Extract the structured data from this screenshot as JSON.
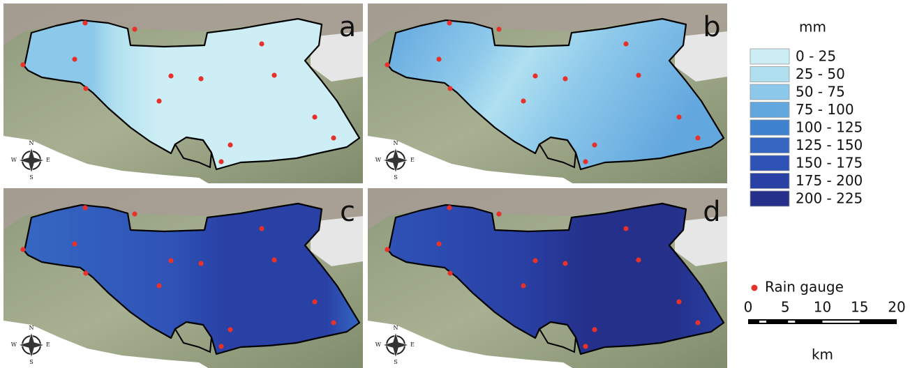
{
  "panels": [
    {
      "label": "a"
    },
    {
      "label": "b"
    },
    {
      "label": "c"
    },
    {
      "label": "d"
    }
  ],
  "compass": {
    "n": "N",
    "s": "S",
    "e": "E",
    "w": "W"
  },
  "legend": {
    "title": "mm",
    "classes": [
      {
        "label": "0 - 25",
        "color": "#cdeef5"
      },
      {
        "label": "25 - 50",
        "color": "#b0e0f0"
      },
      {
        "label": "50 - 75",
        "color": "#8cc8ea"
      },
      {
        "label": "75 - 100",
        "color": "#62a7de"
      },
      {
        "label": "100 - 125",
        "color": "#3f83d0"
      },
      {
        "label": "125 - 150",
        "color": "#3567c2"
      },
      {
        "label": "150 - 175",
        "color": "#2f52b6"
      },
      {
        "label": "175 - 200",
        "color": "#2940a4"
      },
      {
        "label": "200 - 225",
        "color": "#24308a"
      }
    ],
    "gauge_label": "Rain gauge",
    "gauge_color": "#e8312a"
  },
  "scale_bar": {
    "ticks": [
      0,
      5,
      10,
      15,
      20
    ],
    "unit": "km"
  }
}
